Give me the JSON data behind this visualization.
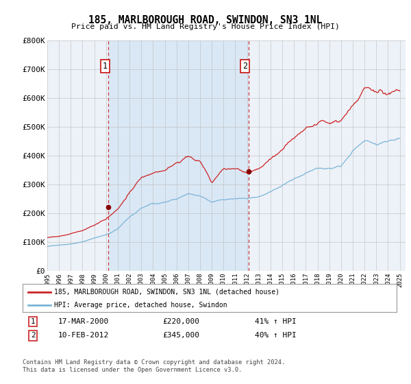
{
  "title": "185, MARLBOROUGH ROAD, SWINDON, SN3 1NL",
  "subtitle": "Price paid vs. HM Land Registry's House Price Index (HPI)",
  "legend_line1": "185, MARLBOROUGH ROAD, SWINDON, SN3 1NL (detached house)",
  "legend_line2": "HPI: Average price, detached house, Swindon",
  "annotation1_label": "1",
  "annotation1_date": "17-MAR-2000",
  "annotation1_price": "£220,000",
  "annotation1_hpi": "41% ↑ HPI",
  "annotation2_label": "2",
  "annotation2_date": "10-FEB-2012",
  "annotation2_price": "£345,000",
  "annotation2_hpi": "40% ↑ HPI",
  "footer": "Contains HM Land Registry data © Crown copyright and database right 2024.\nThis data is licensed under the Open Government Licence v3.0.",
  "hpi_color": "#7ab4d8",
  "price_color": "#cc2222",
  "marker_color": "#880000",
  "bg_color": "#ffffff",
  "plot_bg_color": "#edf2f8",
  "shade_color": "#dae8f5",
  "vline_color": "#cc3333",
  "annotation_box_color": "#cc2222",
  "grid_color": "#bbbbbb",
  "ylim": [
    0,
    800000
  ],
  "yticks": [
    0,
    100000,
    200000,
    300000,
    400000,
    500000,
    600000,
    700000,
    800000
  ],
  "ytick_labels": [
    "£0",
    "£100K",
    "£200K",
    "£300K",
    "£400K",
    "£500K",
    "£600K",
    "£700K",
    "£800K"
  ],
  "year_start": 1995,
  "year_end": 2025,
  "event1_year": 2000.21,
  "event2_year": 2012.11,
  "event1_price": 220000,
  "event2_price": 345000
}
